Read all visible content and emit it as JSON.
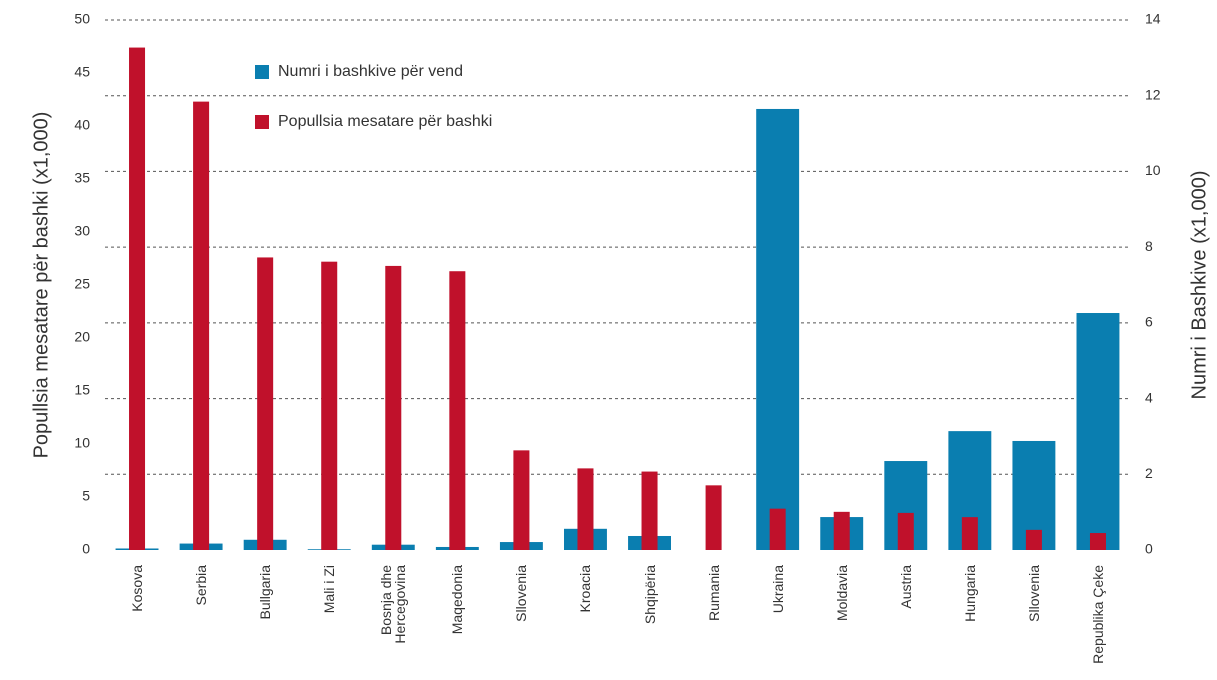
{
  "chart_data": {
    "type": "bar",
    "y_label": "Popullsia mesatare për bashki (x1,000)",
    "y2_label": "Numri i Bashkive (x1,000)",
    "categories": [
      "Kosova",
      "Serbia",
      "Bullgaria",
      "Mali i Zi",
      "Bosnja dhe Hercegovina",
      "Maqedonia",
      "Sllovenia",
      "Kroacia",
      "Shqipëria",
      "Rumania",
      "Ukraina",
      "Moldavia",
      "Austria",
      "Hungaria",
      "Sllovenia",
      "Republika Çeke"
    ],
    "series": [
      {
        "name": "Numri i bashkive për vend",
        "color": "#0a7eb0",
        "axis": "y2",
        "values": [
          0.04,
          0.17,
          0.27,
          0.02,
          0.14,
          0.08,
          0.21,
          0.56,
          0.37,
          null,
          11.65,
          0.87,
          2.35,
          3.14,
          2.88,
          6.26
        ]
      },
      {
        "name": "Popullsia mesatare për bashki",
        "color": "#c0112b",
        "values": [
          47.4,
          42.3,
          27.6,
          27.2,
          26.8,
          26.3,
          9.4,
          7.7,
          7.4,
          6.1,
          3.9,
          3.6,
          3.5,
          3.1,
          1.9,
          1.6
        ]
      }
    ],
    "ylim": [
      0,
      50
    ],
    "yticks": [
      0,
      5,
      10,
      15,
      20,
      25,
      30,
      35,
      40,
      45,
      50
    ],
    "y2lim": [
      0,
      14
    ],
    "y2ticks": [
      0,
      2,
      4,
      6,
      8,
      10,
      12,
      14
    ],
    "grid": true
  }
}
